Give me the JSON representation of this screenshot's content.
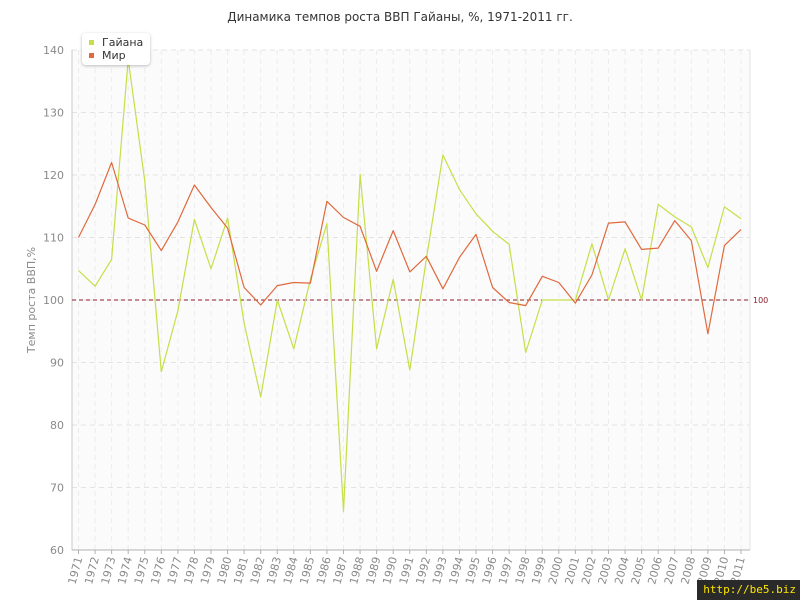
{
  "chart_data": {
    "type": "line",
    "title": "Динамика темпов роста ВВП Гайаны, %, 1971-2011 гг.",
    "ylabel": "Темп роста ВВП,%",
    "xlabel": "",
    "ylim": [
      60,
      140
    ],
    "yticks": [
      "60",
      "70",
      "80",
      "90",
      "100",
      "110",
      "120",
      "130",
      "140"
    ],
    "x": [
      "1971",
      "1972",
      "1973",
      "1974",
      "1975",
      "1976",
      "1977",
      "1978",
      "1979",
      "1980",
      "1981",
      "1982",
      "1983",
      "1984",
      "1985",
      "1986",
      "1987",
      "1988",
      "1989",
      "1990",
      "1991",
      "1992",
      "1993",
      "1994",
      "1995",
      "1996",
      "1997",
      "1998",
      "1999",
      "2000",
      "2001",
      "2002",
      "2003",
      "2004",
      "2005",
      "2006",
      "2007",
      "2008",
      "2009",
      "2010",
      "2011"
    ],
    "series": [
      {
        "name": "Гайана",
        "color": "#c5df48",
        "values": [
          104.7,
          102.2,
          106.5,
          138.5,
          119.0,
          88.5,
          98.3,
          112.9,
          105.0,
          113.1,
          96.3,
          84.5,
          100.0,
          92.2,
          103.3,
          112.2,
          66.2,
          120.1,
          92.2,
          103.3,
          88.8,
          106.5,
          123.2,
          117.7,
          113.8,
          111.0,
          108.9,
          91.6,
          100.0,
          100.0,
          100.0,
          109.0,
          100.0,
          108.2,
          100.0,
          115.3,
          113.3,
          111.7,
          105.2,
          114.9,
          113.0
        ]
      },
      {
        "name": "Мир",
        "color": "#e0693d",
        "values": [
          110.0,
          115.3,
          122.0,
          113.1,
          112.0,
          107.9,
          112.5,
          118.4,
          114.8,
          111.5,
          102.0,
          99.2,
          102.3,
          102.8,
          102.7,
          115.8,
          113.2,
          111.8,
          104.6,
          111.1,
          104.5,
          107.0,
          101.8,
          106.8,
          110.5,
          102.0,
          99.6,
          99.1,
          103.8,
          102.8,
          99.5,
          104.0,
          112.3,
          112.5,
          108.1,
          108.3,
          112.7,
          109.5,
          94.6,
          108.7,
          111.3
        ]
      }
    ],
    "reference_line": {
      "value": 100,
      "label": "100",
      "color": "#8b1c2a"
    },
    "grid": true,
    "legend": {
      "position": "top-left"
    }
  },
  "watermark": "http://be5.biz"
}
